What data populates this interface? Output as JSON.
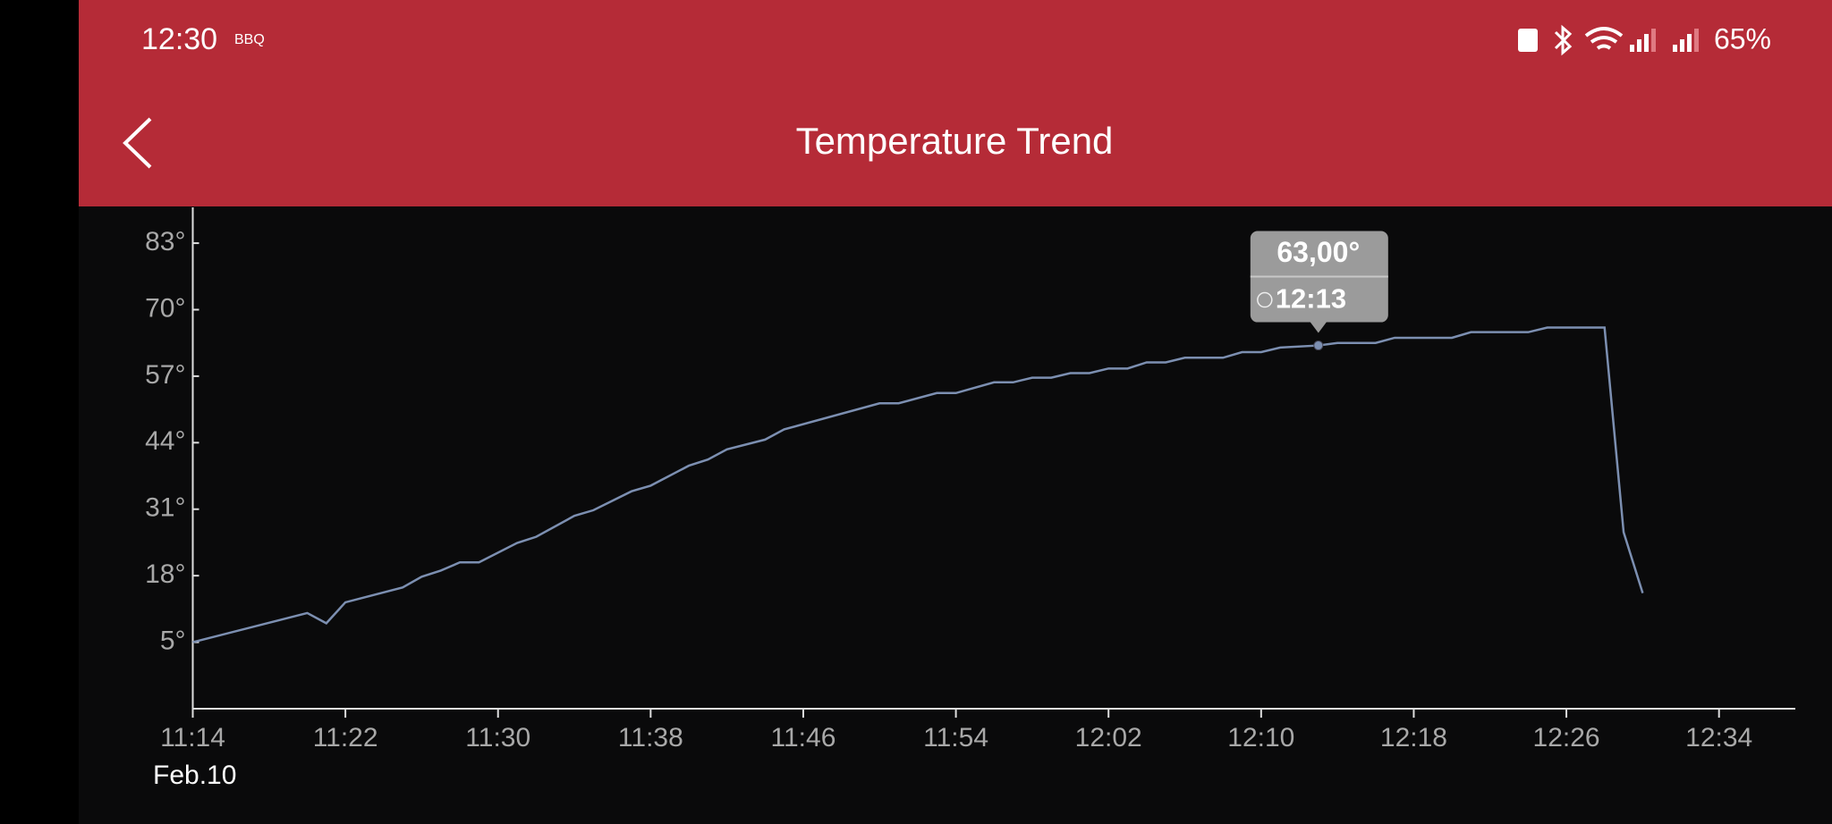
{
  "status_bar": {
    "time": "12:30",
    "app": "BBQ",
    "battery": "65%"
  },
  "header": {
    "title": "Temperature Trend"
  },
  "chart_data": {
    "type": "line",
    "date": "Feb.10",
    "color": "#7c8fb1",
    "x": [
      "11:14",
      "11:20",
      "11:21",
      "11:22",
      "11:25",
      "11:26",
      "11:27",
      "11:28",
      "11:29",
      "11:31",
      "11:32",
      "11:34",
      "11:35",
      "11:37",
      "11:38",
      "11:40",
      "11:41",
      "11:42",
      "11:44",
      "11:45",
      "11:50",
      "11:51",
      "11:53",
      "11:54",
      "11:56",
      "11:57",
      "11:58",
      "11:59",
      "12:00",
      "12:01",
      "12:02",
      "12:03",
      "12:04",
      "12:05",
      "12:06",
      "12:08",
      "12:09",
      "12:10",
      "12:11",
      "12:13",
      "12:14",
      "12:16",
      "12:17",
      "12:20",
      "12:21",
      "12:24",
      "12:25",
      "12:28",
      "12:29",
      "12:30"
    ],
    "values": [
      5,
      10.7,
      8.7,
      12.8,
      15.7,
      17.8,
      19,
      20.6,
      20.6,
      24.4,
      25.6,
      29.7,
      30.8,
      34.5,
      35.6,
      39.5,
      40.7,
      42.7,
      44.6,
      46.6,
      51.7,
      51.7,
      53.7,
      53.7,
      55.8,
      55.8,
      56.7,
      56.7,
      57.6,
      57.6,
      58.5,
      58.5,
      59.7,
      59.7,
      60.6,
      60.6,
      61.7,
      61.7,
      62.6,
      63,
      63.5,
      63.5,
      64.5,
      64.5,
      65.6,
      65.6,
      66.5,
      66.5,
      26.5,
      14.6
    ],
    "xlim": [
      "11:14",
      "12:38"
    ],
    "xticks": [
      "11:14",
      "11:22",
      "11:30",
      "11:38",
      "11:46",
      "11:54",
      "12:02",
      "12:10",
      "12:18",
      "12:26",
      "12:34"
    ],
    "ylim": [
      -8,
      90
    ],
    "yticks": [
      {
        "value": 5,
        "label": "5°"
      },
      {
        "value": 18,
        "label": "18°"
      },
      {
        "value": 31,
        "label": "31°"
      },
      {
        "value": 44,
        "label": "44°"
      },
      {
        "value": 57,
        "label": "57°"
      },
      {
        "value": 70,
        "label": "70°"
      },
      {
        "value": 83,
        "label": "83°"
      }
    ],
    "annotation": {
      "x": "12:13",
      "label": "63,00°"
    },
    "grid": false
  }
}
